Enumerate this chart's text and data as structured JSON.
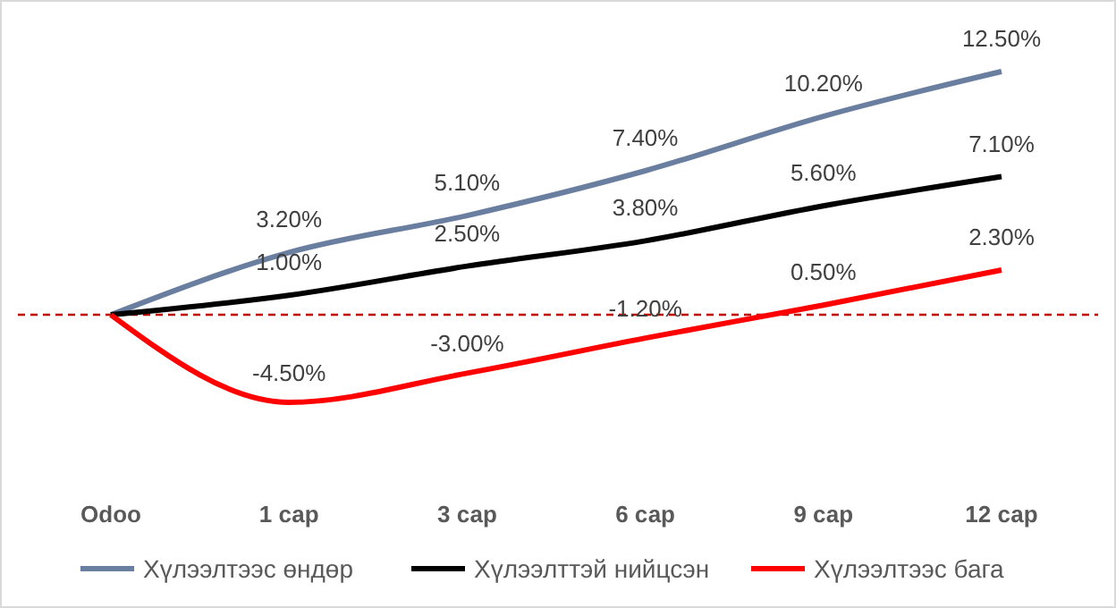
{
  "chart_data": {
    "type": "line",
    "categories": [
      "Odoo",
      "1 сар",
      "3 сар",
      "6 сар",
      "9 сар",
      "12 сар"
    ],
    "series": [
      {
        "name": "Хүлээлтээс өндөр",
        "color": "#6a7fa0",
        "values": [
          0,
          3.2,
          5.1,
          7.4,
          10.2,
          12.5
        ],
        "value_labels": [
          null,
          "3.20%",
          "5.10%",
          "7.40%",
          "10.20%",
          "12.50%"
        ]
      },
      {
        "name": "Хүлээлттэй нийцсэн",
        "color": "#000000",
        "values": [
          0,
          1.0,
          2.5,
          3.8,
          5.6,
          7.1
        ],
        "value_labels": [
          null,
          "1.00%",
          "2.50%",
          "3.80%",
          "5.60%",
          "7.10%"
        ]
      },
      {
        "name": "Хүлээлтээс бага",
        "color": "#ff0000",
        "values": [
          0,
          -4.5,
          -3.0,
          -1.2,
          0.5,
          2.3
        ],
        "value_labels": [
          null,
          "-4.50%",
          "-3.00%",
          "-1.20%",
          "0.50%",
          "2.30%"
        ]
      }
    ],
    "ref_lines": [
      {
        "axis": "y",
        "value": 0,
        "color": "#c00000",
        "line_style": "dashed"
      }
    ],
    "legend": "bottom",
    "grid": false,
    "marker": "none",
    "line_style": "solid"
  }
}
